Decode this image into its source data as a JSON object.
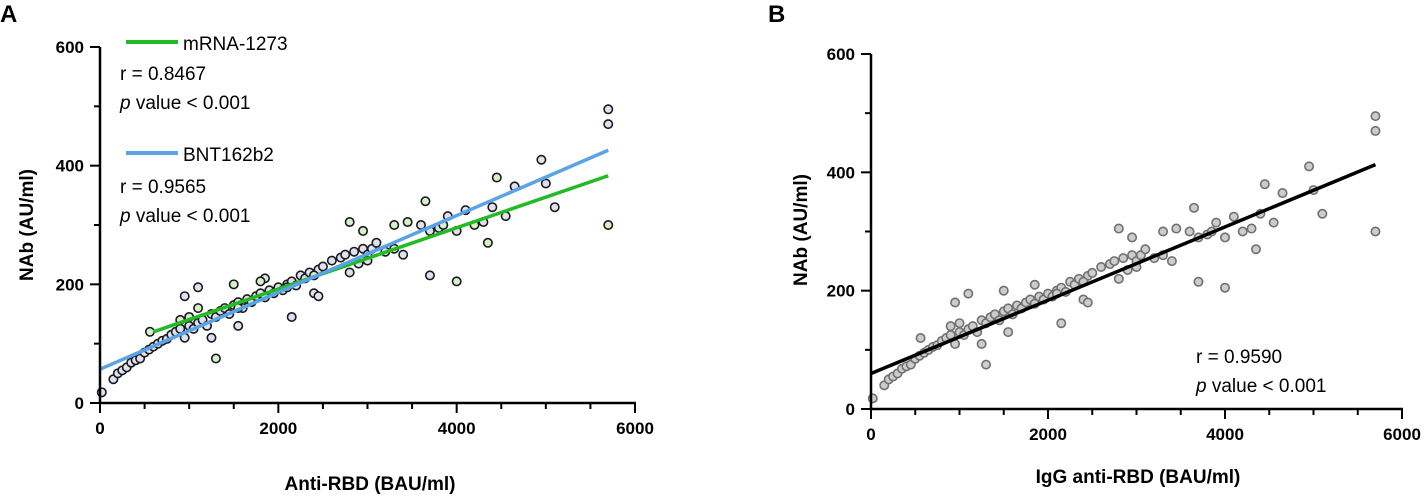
{
  "panels": {
    "a": {
      "letter": "A"
    },
    "b": {
      "letter": "B"
    }
  },
  "colors": {
    "mrna": "#22bb22",
    "bnt": "#5aa3e6",
    "fit_black": "#000000",
    "pt_green_fill": "#d7f0c8",
    "pt_blue_fill": "#dde1f0",
    "pt_gray_fill": "#cccccc",
    "pt_gray_stroke": "#707070"
  },
  "chart_data": [
    {
      "panel": "A",
      "type": "scatter",
      "xlabel": "Anti-RBD (BAU/ml)",
      "ylabel": "NAb (AU/ml)",
      "xlim": [
        0,
        6000
      ],
      "ylim": [
        0,
        600
      ],
      "xticks": [
        0,
        2000,
        4000,
        6000
      ],
      "yticks": [
        0,
        200,
        400,
        600
      ],
      "legend": [
        {
          "name": "mRNA-1273",
          "r_text": "r = 0.8467",
          "p_italic": "p",
          "p_text": " value < 0.001"
        },
        {
          "name": "BNT162b2",
          "r_text": "r = 0.9565",
          "p_italic": "p",
          "p_text": " value < 0.001"
        }
      ],
      "fits": [
        {
          "name": "mRNA-1273",
          "x": [
            600,
            5700
          ],
          "y": [
            120,
            383
          ]
        },
        {
          "name": "BNT162b2",
          "x": [
            0,
            5700
          ],
          "y": [
            57,
            426
          ]
        }
      ],
      "series": [
        {
          "name": "mRNA-1273",
          "x": [
            560,
            900,
            1000,
            1100,
            1300,
            1500,
            1550,
            1800,
            2100,
            2400,
            2800,
            2950,
            3300,
            3450,
            3650,
            3850,
            4000,
            4200,
            4350,
            4450,
            5700
          ],
          "y": [
            120,
            140,
            145,
            160,
            75,
            200,
            160,
            205,
            195,
            215,
            305,
            290,
            300,
            305,
            340,
            300,
            205,
            300,
            270,
            380,
            300
          ]
        },
        {
          "name": "BNT162b2",
          "x": [
            20,
            150,
            200,
            250,
            300,
            350,
            400,
            450,
            500,
            550,
            600,
            650,
            700,
            750,
            800,
            850,
            900,
            950,
            1000,
            1050,
            1100,
            1150,
            1200,
            1250,
            1300,
            1350,
            1400,
            1450,
            1500,
            1550,
            1600,
            1650,
            1700,
            1750,
            1800,
            1850,
            1900,
            1950,
            2000,
            2050,
            2100,
            2150,
            2200,
            2250,
            2300,
            2350,
            2400,
            2450,
            2500,
            2600,
            2700,
            2750,
            2800,
            2850,
            2900,
            2950,
            3000,
            3050,
            3100,
            3200,
            3400,
            3600,
            3700,
            3800,
            3900,
            4000,
            4100,
            4300,
            4400,
            4550,
            4650,
            4950,
            5000,
            5100,
            5700,
            5700,
            950,
            1100,
            1250,
            1550,
            1850,
            2150,
            2450,
            3000,
            3300,
            3700
          ],
          "y": [
            18,
            40,
            50,
            55,
            60,
            68,
            72,
            75,
            85,
            90,
            95,
            100,
            105,
            108,
            115,
            120,
            125,
            110,
            130,
            125,
            135,
            140,
            130,
            150,
            145,
            155,
            160,
            150,
            165,
            170,
            160,
            175,
            170,
            180,
            185,
            178,
            190,
            185,
            195,
            190,
            200,
            205,
            198,
            215,
            210,
            220,
            185,
            225,
            230,
            240,
            245,
            250,
            220,
            255,
            235,
            260,
            250,
            260,
            270,
            255,
            250,
            300,
            215,
            295,
            315,
            290,
            325,
            305,
            330,
            315,
            365,
            410,
            370,
            330,
            470,
            495,
            180,
            195,
            110,
            130,
            210,
            145,
            180,
            240,
            260,
            290
          ]
        }
      ]
    },
    {
      "panel": "B",
      "type": "scatter",
      "xlabel": "IgG anti-RBD (BAU/ml)",
      "ylabel": "NAb (AU/ml)",
      "xlim": [
        0,
        6000
      ],
      "ylim": [
        0,
        600
      ],
      "xticks": [
        0,
        2000,
        4000,
        6000
      ],
      "yticks": [
        0,
        200,
        400,
        600
      ],
      "annotation": {
        "r_text": "r = 0.9590",
        "p_italic": "p",
        "p_text": " value < 0.001"
      },
      "fits": [
        {
          "name": "all",
          "x": [
            0,
            5700
          ],
          "y": [
            60,
            413
          ]
        }
      ],
      "series": [
        {
          "name": "all",
          "x": [
            20,
            150,
            200,
            250,
            300,
            350,
            400,
            450,
            500,
            550,
            600,
            650,
            700,
            750,
            800,
            850,
            900,
            950,
            1000,
            1050,
            1100,
            1150,
            1200,
            1250,
            1300,
            1350,
            1400,
            1450,
            1500,
            1550,
            1600,
            1650,
            1700,
            1750,
            1800,
            1850,
            1900,
            1950,
            2000,
            2050,
            2100,
            2150,
            2200,
            2250,
            2300,
            2350,
            2400,
            2450,
            2500,
            2600,
            2700,
            2750,
            2800,
            2850,
            2900,
            2950,
            3000,
            3050,
            3100,
            3200,
            3400,
            3600,
            3700,
            3800,
            3900,
            4000,
            4100,
            4300,
            4400,
            4550,
            4650,
            4950,
            5000,
            5100,
            5700,
            5700,
            950,
            1100,
            1250,
            1550,
            1850,
            2150,
            2450,
            3000,
            3300,
            3700,
            560,
            900,
            1000,
            1300,
            1500,
            2100,
            2400,
            2800,
            2950,
            3300,
            3450,
            3650,
            3850,
            4000,
            4200,
            4350,
            4450,
            5700
          ],
          "y": [
            18,
            40,
            50,
            55,
            60,
            68,
            72,
            75,
            85,
            90,
            95,
            100,
            105,
            108,
            115,
            120,
            125,
            110,
            130,
            125,
            135,
            140,
            130,
            150,
            145,
            155,
            160,
            150,
            165,
            170,
            160,
            175,
            170,
            180,
            185,
            178,
            190,
            185,
            195,
            190,
            200,
            205,
            198,
            215,
            210,
            220,
            185,
            225,
            230,
            240,
            245,
            250,
            220,
            255,
            235,
            260,
            250,
            260,
            270,
            255,
            250,
            300,
            215,
            295,
            315,
            290,
            325,
            305,
            330,
            315,
            365,
            410,
            370,
            330,
            470,
            495,
            180,
            195,
            110,
            130,
            210,
            145,
            180,
            240,
            260,
            290,
            120,
            140,
            145,
            75,
            200,
            195,
            215,
            305,
            290,
            300,
            305,
            340,
            300,
            205,
            300,
            270,
            380,
            300
          ]
        }
      ]
    }
  ]
}
